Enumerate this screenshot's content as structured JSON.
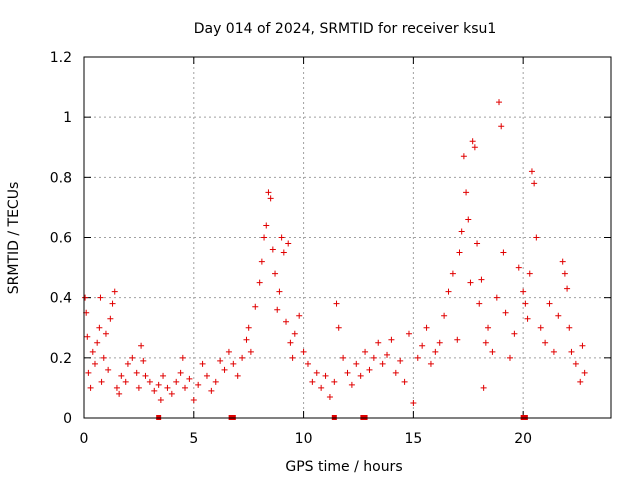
{
  "chart_data": {
    "type": "scatter",
    "title": "Day 014 of 2024, SRMTID for receiver ksu1",
    "xlabel": "GPS time / hours",
    "ylabel": "SRMTID / TECUs",
    "xlim": [
      0,
      24
    ],
    "ylim": [
      0,
      1.2
    ],
    "xticks": [
      {
        "value": 0,
        "label": "0"
      },
      {
        "value": 5,
        "label": "5"
      },
      {
        "value": 10,
        "label": "10"
      },
      {
        "value": 15,
        "label": "15"
      },
      {
        "value": 20,
        "label": "20"
      }
    ],
    "yticks": [
      {
        "value": 0,
        "label": "0"
      },
      {
        "value": 0.2,
        "label": "0.2"
      },
      {
        "value": 0.4,
        "label": "0.4"
      },
      {
        "value": 0.6,
        "label": "0.6"
      },
      {
        "value": 0.8,
        "label": "0.8"
      },
      {
        "value": 1.0,
        "label": "1"
      },
      {
        "value": 1.2,
        "label": "1.2"
      }
    ],
    "grid": true,
    "marker": "+",
    "marker_color": "#e00000",
    "series": [
      {
        "name": "SRMTID",
        "points": [
          [
            0.05,
            0.4
          ],
          [
            0.1,
            0.35
          ],
          [
            0.15,
            0.27
          ],
          [
            0.2,
            0.15
          ],
          [
            0.3,
            0.1
          ],
          [
            0.4,
            0.22
          ],
          [
            0.5,
            0.18
          ],
          [
            0.6,
            0.25
          ],
          [
            0.7,
            0.3
          ],
          [
            0.75,
            0.4
          ],
          [
            0.8,
            0.12
          ],
          [
            0.9,
            0.2
          ],
          [
            1.0,
            0.28
          ],
          [
            1.1,
            0.16
          ],
          [
            1.2,
            0.33
          ],
          [
            1.3,
            0.38
          ],
          [
            1.4,
            0.42
          ],
          [
            1.5,
            0.1
          ],
          [
            1.6,
            0.08
          ],
          [
            1.7,
            0.14
          ],
          [
            1.9,
            0.12
          ],
          [
            2.0,
            0.18
          ],
          [
            2.2,
            0.2
          ],
          [
            2.4,
            0.15
          ],
          [
            2.5,
            0.1
          ],
          [
            2.6,
            0.24
          ],
          [
            2.7,
            0.19
          ],
          [
            2.8,
            0.14
          ],
          [
            3.0,
            0.12
          ],
          [
            3.2,
            0.09
          ],
          [
            3.4,
            0.11
          ],
          [
            3.5,
            0.06
          ],
          [
            3.6,
            0.14
          ],
          [
            3.8,
            0.1
          ],
          [
            4.0,
            0.08
          ],
          [
            4.2,
            0.12
          ],
          [
            4.4,
            0.15
          ],
          [
            4.5,
            0.2
          ],
          [
            4.6,
            0.1
          ],
          [
            4.8,
            0.13
          ],
          [
            5.0,
            0.06
          ],
          [
            5.2,
            0.11
          ],
          [
            5.4,
            0.18
          ],
          [
            5.6,
            0.14
          ],
          [
            5.8,
            0.09
          ],
          [
            6.0,
            0.12
          ],
          [
            6.2,
            0.19
          ],
          [
            6.4,
            0.16
          ],
          [
            6.6,
            0.22
          ],
          [
            6.8,
            0.18
          ],
          [
            7.0,
            0.14
          ],
          [
            7.2,
            0.2
          ],
          [
            7.4,
            0.26
          ],
          [
            7.5,
            0.3
          ],
          [
            7.6,
            0.22
          ],
          [
            7.8,
            0.37
          ],
          [
            8.0,
            0.45
          ],
          [
            8.1,
            0.52
          ],
          [
            8.2,
            0.6
          ],
          [
            8.3,
            0.64
          ],
          [
            8.4,
            0.75
          ],
          [
            8.5,
            0.73
          ],
          [
            8.6,
            0.56
          ],
          [
            8.7,
            0.48
          ],
          [
            8.8,
            0.36
          ],
          [
            8.9,
            0.42
          ],
          [
            9.0,
            0.6
          ],
          [
            9.1,
            0.55
          ],
          [
            9.2,
            0.32
          ],
          [
            9.3,
            0.58
          ],
          [
            9.4,
            0.25
          ],
          [
            9.5,
            0.2
          ],
          [
            9.6,
            0.28
          ],
          [
            9.8,
            0.34
          ],
          [
            10.0,
            0.22
          ],
          [
            10.2,
            0.18
          ],
          [
            10.4,
            0.12
          ],
          [
            10.6,
            0.15
          ],
          [
            10.8,
            0.1
          ],
          [
            11.0,
            0.14
          ],
          [
            11.2,
            0.07
          ],
          [
            11.4,
            0.12
          ],
          [
            11.5,
            0.38
          ],
          [
            11.6,
            0.3
          ],
          [
            11.8,
            0.2
          ],
          [
            12.0,
            0.15
          ],
          [
            12.2,
            0.11
          ],
          [
            12.4,
            0.18
          ],
          [
            12.6,
            0.14
          ],
          [
            12.8,
            0.22
          ],
          [
            13.0,
            0.16
          ],
          [
            13.2,
            0.2
          ],
          [
            13.4,
            0.25
          ],
          [
            13.6,
            0.18
          ],
          [
            13.8,
            0.21
          ],
          [
            14.0,
            0.26
          ],
          [
            14.2,
            0.15
          ],
          [
            14.4,
            0.19
          ],
          [
            14.6,
            0.12
          ],
          [
            14.8,
            0.28
          ],
          [
            15.0,
            0.05
          ],
          [
            15.2,
            0.2
          ],
          [
            15.4,
            0.24
          ],
          [
            15.6,
            0.3
          ],
          [
            15.8,
            0.18
          ],
          [
            16.0,
            0.22
          ],
          [
            16.2,
            0.25
          ],
          [
            16.4,
            0.34
          ],
          [
            16.6,
            0.42
          ],
          [
            16.8,
            0.48
          ],
          [
            17.0,
            0.26
          ],
          [
            17.1,
            0.55
          ],
          [
            17.2,
            0.62
          ],
          [
            17.3,
            0.87
          ],
          [
            17.4,
            0.75
          ],
          [
            17.5,
            0.66
          ],
          [
            17.6,
            0.45
          ],
          [
            17.7,
            0.92
          ],
          [
            17.8,
            0.9
          ],
          [
            17.9,
            0.58
          ],
          [
            18.0,
            0.38
          ],
          [
            18.1,
            0.46
          ],
          [
            18.2,
            0.1
          ],
          [
            18.3,
            0.25
          ],
          [
            18.4,
            0.3
          ],
          [
            18.6,
            0.22
          ],
          [
            18.8,
            0.4
          ],
          [
            18.9,
            1.05
          ],
          [
            19.0,
            0.97
          ],
          [
            19.1,
            0.55
          ],
          [
            19.2,
            0.35
          ],
          [
            19.4,
            0.2
          ],
          [
            19.6,
            0.28
          ],
          [
            19.8,
            0.5
          ],
          [
            20.0,
            0.42
          ],
          [
            20.1,
            0.38
          ],
          [
            20.2,
            0.33
          ],
          [
            20.3,
            0.48
          ],
          [
            20.4,
            0.82
          ],
          [
            20.5,
            0.78
          ],
          [
            20.6,
            0.6
          ],
          [
            20.8,
            0.3
          ],
          [
            21.0,
            0.25
          ],
          [
            21.2,
            0.38
          ],
          [
            21.4,
            0.22
          ],
          [
            21.6,
            0.34
          ],
          [
            21.8,
            0.52
          ],
          [
            21.9,
            0.48
          ],
          [
            22.0,
            0.43
          ],
          [
            22.1,
            0.3
          ],
          [
            22.2,
            0.22
          ],
          [
            22.4,
            0.18
          ],
          [
            22.6,
            0.12
          ],
          [
            22.7,
            0.24
          ],
          [
            22.8,
            0.15
          ]
        ]
      }
    ],
    "baseline_markers": [
      3.4,
      6.7,
      6.8,
      11.4,
      12.7,
      12.8,
      20.0,
      20.1
    ]
  }
}
